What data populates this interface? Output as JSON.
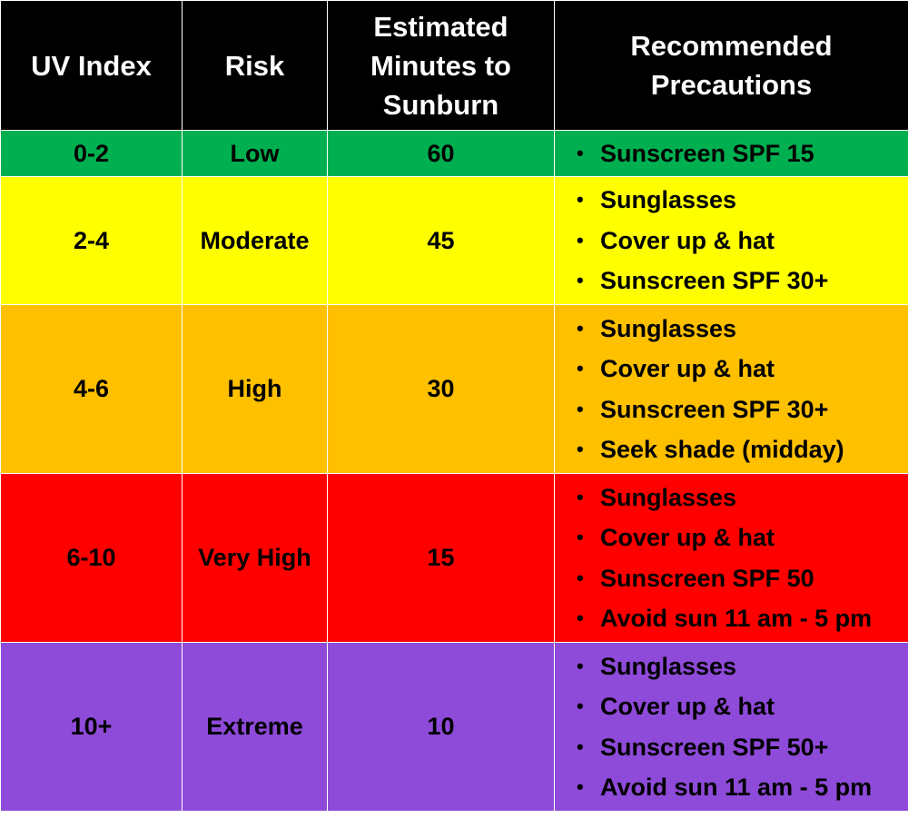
{
  "chart_data": {
    "type": "table",
    "headers": [
      "UV Index",
      "Risk",
      "Estimated\nMinutes to\nSunburn",
      "Recommended\nPrecautions"
    ],
    "rows": [
      {
        "uv_index": "0-2",
        "risk": "Low",
        "minutes": "60",
        "precautions": [
          "Sunscreen SPF 15"
        ],
        "color": "#00b050"
      },
      {
        "uv_index": "2-4",
        "risk": "Moderate",
        "minutes": "45",
        "precautions": [
          "Sunglasses",
          "Cover up & hat",
          "Sunscreen SPF 30+"
        ],
        "color": "#ffff00"
      },
      {
        "uv_index": "4-6",
        "risk": "High",
        "minutes": "30",
        "precautions": [
          "Sunglasses",
          "Cover up & hat",
          "Sunscreen SPF 30+",
          "Seek shade (midday)"
        ],
        "color": "#ffc000"
      },
      {
        "uv_index": "6-10",
        "risk": "Very High",
        "minutes": "15",
        "precautions": [
          "Sunglasses",
          "Cover up & hat",
          "Sunscreen SPF 50",
          "Avoid sun 11 am - 5 pm"
        ],
        "color": "#ff0000"
      },
      {
        "uv_index": "10+",
        "risk": "Extreme",
        "minutes": "10",
        "precautions": [
          "Sunglasses",
          "Cover up & hat",
          "Sunscreen SPF 50+",
          "Avoid sun 11 am - 5 pm"
        ],
        "color": "#8e4ad8"
      }
    ],
    "header_background": "#000000",
    "header_text_color": "#ffffff"
  }
}
